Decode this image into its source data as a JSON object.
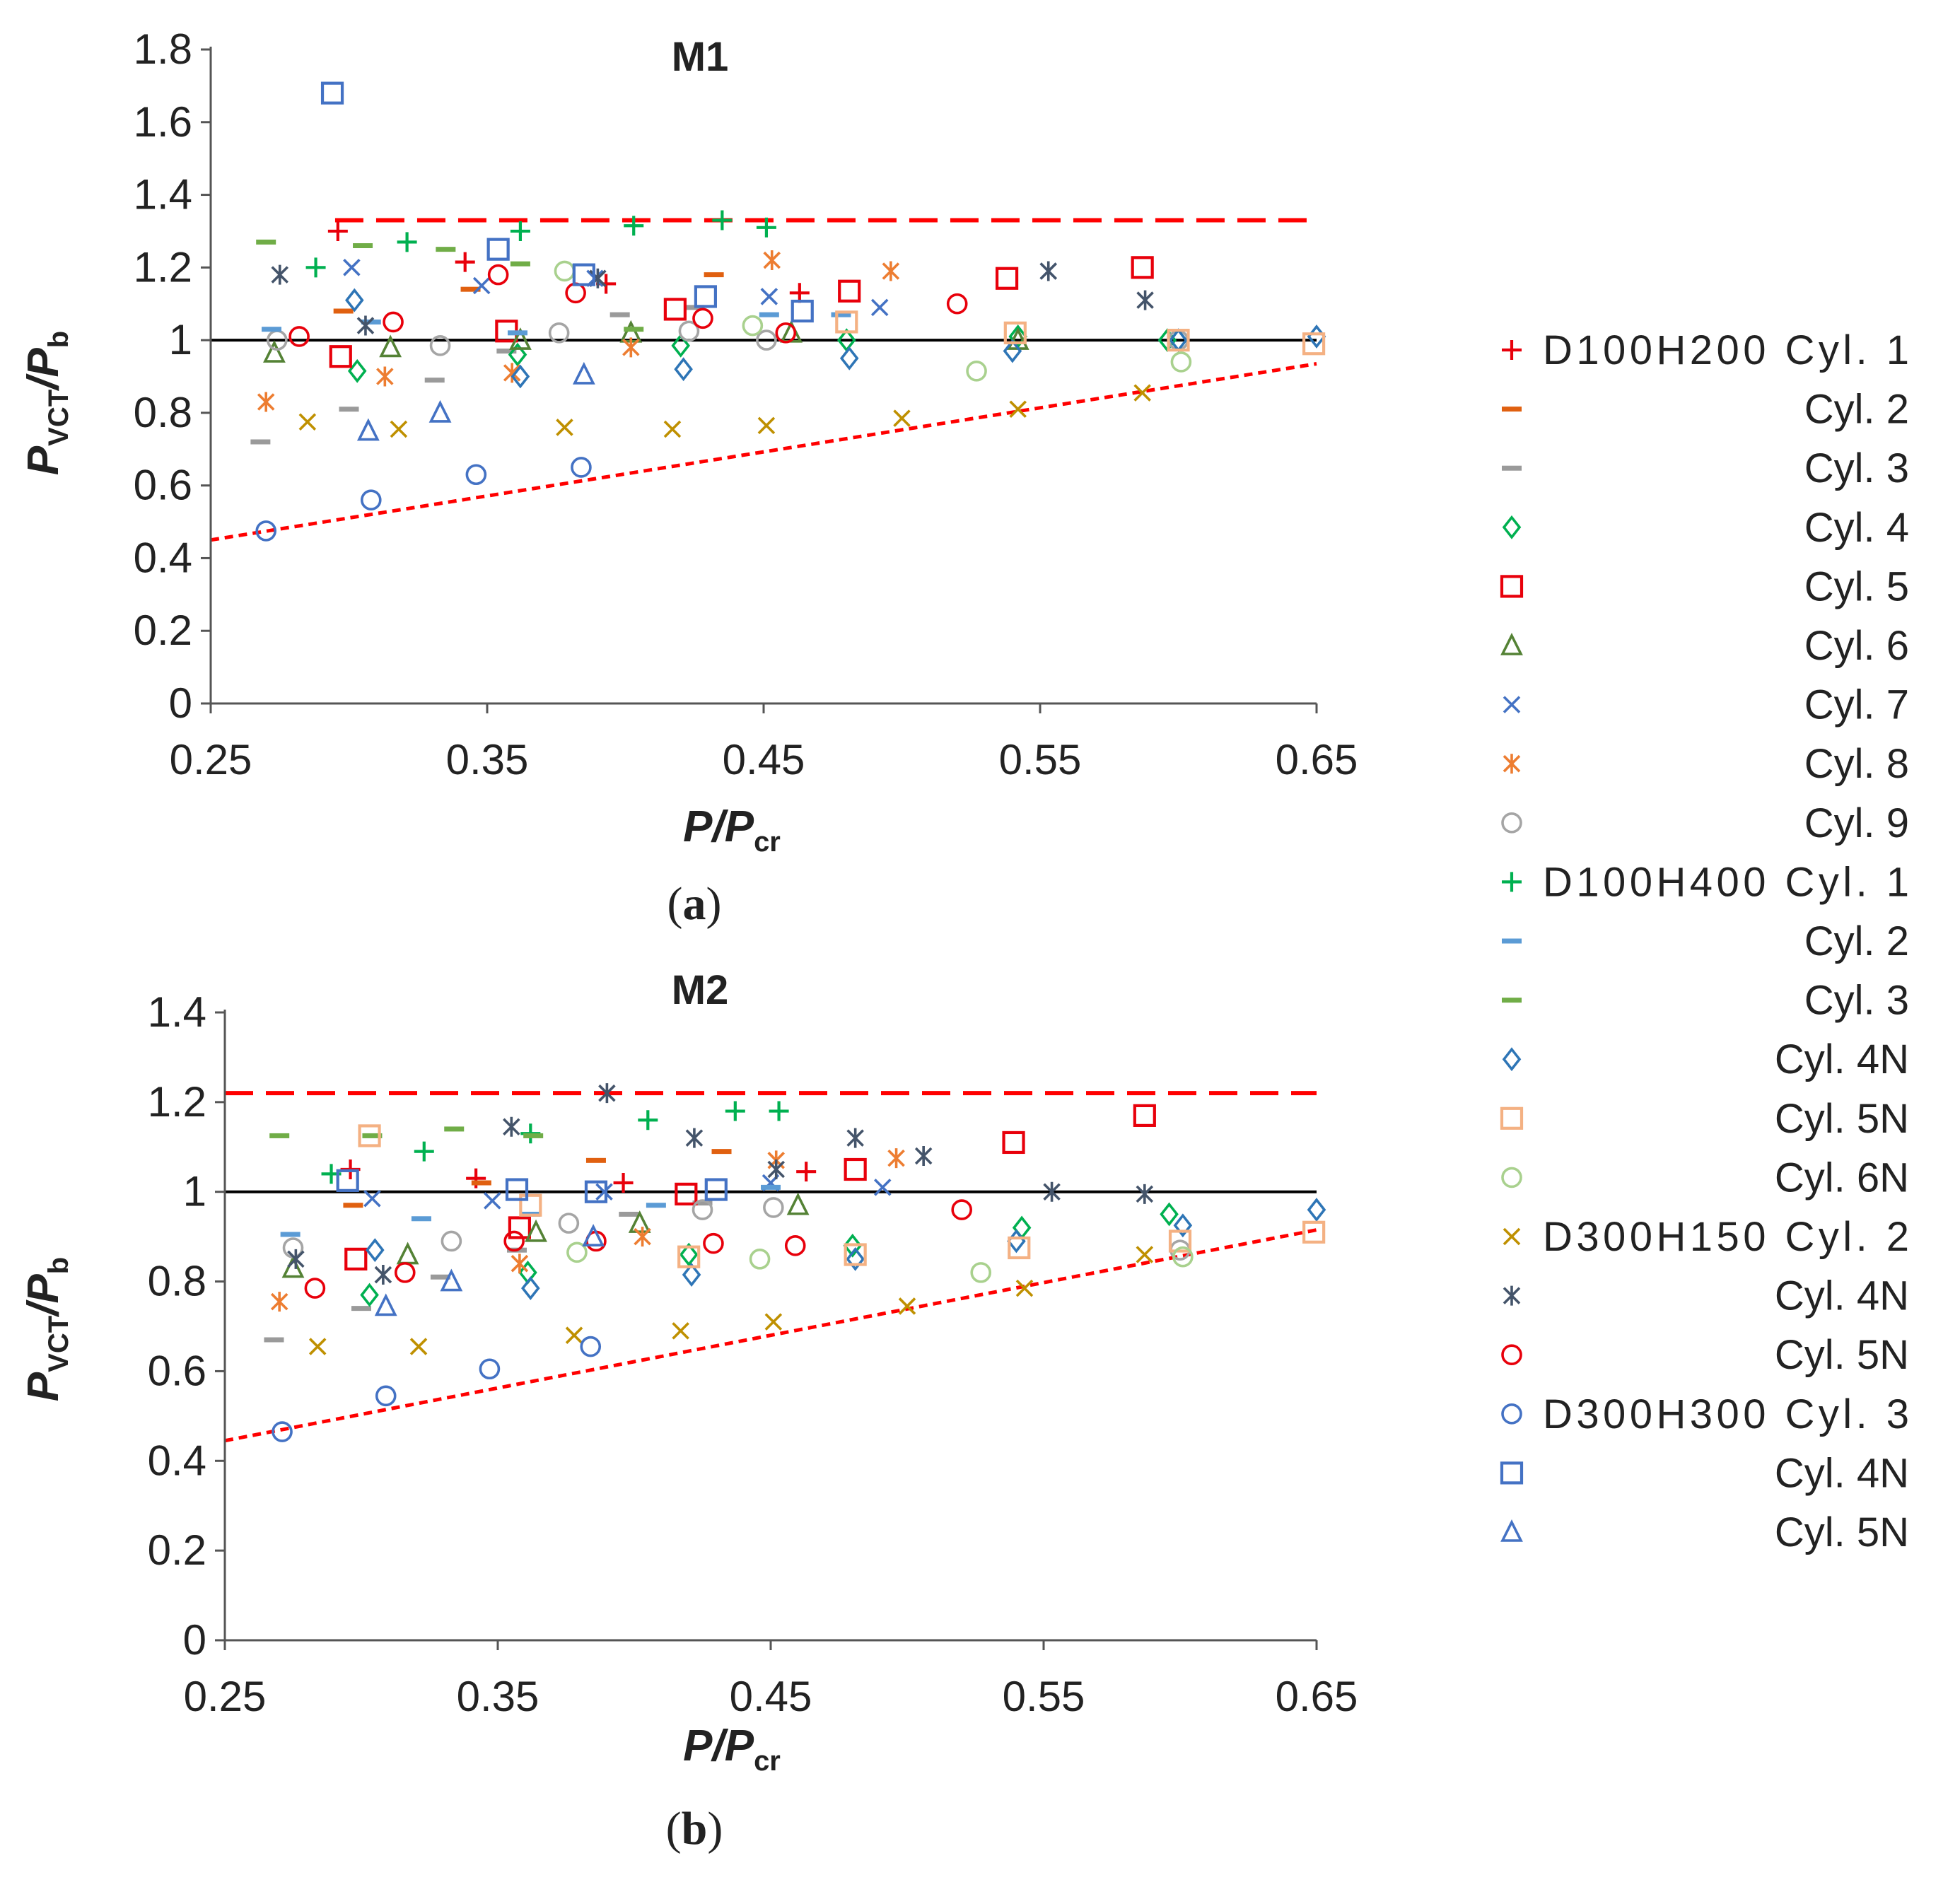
{
  "colors": {
    "D100H200_cyl1": "#e8000b",
    "D100H200_cyl2": "#e06010",
    "D100H200_cyl3": "#9a9a9a",
    "D100H200_cyl4": "#00b050",
    "D100H200_cyl5": "#e8000b",
    "D100H200_cyl6": "#548235",
    "D100H200_cyl7": "#4472c4",
    "D100H200_cyl8": "#ed7d31",
    "D100H200_cyl9": "#a5a5a5",
    "D100H400_cyl1": "#00b050",
    "D100H400_cyl2": "#5b9bd5",
    "D100H400_cyl3": "#70ad47",
    "D100H400_cyl4N": "#2e75b6",
    "D100H400_cyl5N": "#f4b183",
    "D100H400_cyl6N": "#a9d18e",
    "D300H150_cyl2": "#bf9000",
    "D300H150_cyl4N": "#44546a",
    "D300H150_cyl5N": "#e8000b",
    "D300H300_cyl3": "#4472c4",
    "D300H300_cyl4N": "#4472c4",
    "D300H300_cyl5N": "#4472c4",
    "upper_bound": "#ff0000",
    "lower_bound": "#ff0000",
    "reference": "#000000"
  },
  "panel_labels": {
    "a_open": "(",
    "a_letter": "a",
    "a_close": ")",
    "b_open": "(",
    "b_letter": "b",
    "b_close": ")"
  },
  "legend": [
    {
      "series": "D100H200_cyl1",
      "label": "D100H200 Cyl. 1",
      "marker": "plus"
    },
    {
      "series": "D100H200_cyl2",
      "label": "Cyl. 2",
      "marker": "dash"
    },
    {
      "series": "D100H200_cyl3",
      "label": "Cyl. 3",
      "marker": "dash"
    },
    {
      "series": "D100H200_cyl4",
      "label": "Cyl. 4",
      "marker": "diamond"
    },
    {
      "series": "D100H200_cyl5",
      "label": "Cyl. 5",
      "marker": "square"
    },
    {
      "series": "D100H200_cyl6",
      "label": "Cyl. 6",
      "marker": "triangle"
    },
    {
      "series": "D100H200_cyl7",
      "label": "Cyl. 7",
      "marker": "x"
    },
    {
      "series": "D100H200_cyl8",
      "label": "Cyl. 8",
      "marker": "asterisk"
    },
    {
      "series": "D100H200_cyl9",
      "label": "Cyl. 9",
      "marker": "circle"
    },
    {
      "series": "D100H400_cyl1",
      "label": "D100H400 Cyl. 1",
      "marker": "plus"
    },
    {
      "series": "D100H400_cyl2",
      "label": "Cyl. 2",
      "marker": "dash"
    },
    {
      "series": "D100H400_cyl3",
      "label": "Cyl. 3",
      "marker": "dash"
    },
    {
      "series": "D100H400_cyl4N",
      "label": "Cyl. 4N",
      "marker": "diamond"
    },
    {
      "series": "D100H400_cyl5N",
      "label": "Cyl. 5N",
      "marker": "square"
    },
    {
      "series": "D100H400_cyl6N",
      "label": "Cyl. 6N",
      "marker": "circle"
    },
    {
      "series": "D300H150_cyl2",
      "label": "D300H150 Cyl. 2",
      "marker": "x"
    },
    {
      "series": "D300H150_cyl4N",
      "label": "Cyl. 4N",
      "marker": "asterisk"
    },
    {
      "series": "D300H150_cyl5N",
      "label": "Cyl. 5N",
      "marker": "circle"
    },
    {
      "series": "D300H300_cyl3",
      "label": "D300H300 Cyl. 3",
      "marker": "circle"
    },
    {
      "series": "D300H300_cyl4N",
      "label": "Cyl. 4N",
      "marker": "square"
    },
    {
      "series": "D300H300_cyl5N",
      "label": "Cyl. 5N",
      "marker": "triangle"
    }
  ],
  "chart_data": [
    {
      "type": "scatter",
      "title": "M1",
      "xlabel": "P/P",
      "xlabel_sub": "cr",
      "ylabel": "P",
      "ylabel_sub1": "VCT",
      "ylabel_mid": "/P",
      "ylabel_sub2": "b",
      "xlim": [
        0.25,
        0.65
      ],
      "ylim": [
        0,
        1.8
      ],
      "xticks": [
        0.25,
        0.35,
        0.45,
        0.55,
        0.65
      ],
      "xtick_labels": [
        "0.25",
        "0.35",
        "0.45",
        "0.55",
        "0.65"
      ],
      "yticks": [
        0,
        0.2,
        0.4,
        0.6,
        0.8,
        1,
        1.2,
        1.4,
        1.6,
        1.8
      ],
      "ytick_labels": [
        "0",
        "0.2",
        "0.4",
        "0.6",
        "0.8",
        "1",
        "1.2",
        "1.4",
        "1.6",
        "1.8"
      ],
      "reference_line": {
        "y": 1,
        "x": [
          0.25,
          0.65
        ]
      },
      "upper_bound": {
        "x": [
          0.295,
          0.65
        ],
        "y": [
          1.33,
          1.33
        ]
      },
      "lower_bound": {
        "x": [
          0.25,
          0.65
        ],
        "y": [
          0.45,
          0.935
        ]
      },
      "series": [
        {
          "name": "D100H200_cyl1",
          "x": [
            0.296,
            0.342,
            0.393,
            0.463
          ],
          "y": [
            1.3,
            1.215,
            1.155,
            1.13
          ]
        },
        {
          "name": "D100H200_cyl2",
          "x": [
            0.298,
            0.344,
            0.432
          ],
          "y": [
            1.08,
            1.14,
            1.18
          ]
        },
        {
          "name": "D100H200_cyl3",
          "x": [
            0.268,
            0.3,
            0.331,
            0.357,
            0.398,
            0.425
          ],
          "y": [
            0.72,
            0.81,
            0.89,
            0.97,
            1.07,
            1.09
          ]
        },
        {
          "name": "D100H200_cyl4",
          "x": [
            0.303,
            0.361,
            0.42,
            0.48,
            0.542,
            0.596
          ],
          "y": [
            0.915,
            0.96,
            0.985,
            1.0,
            1.01,
            1.0
          ]
        },
        {
          "name": "D100H200_cyl5",
          "x": [
            0.297,
            0.357,
            0.418,
            0.481,
            0.538,
            0.587
          ],
          "y": [
            0.955,
            1.025,
            1.085,
            1.135,
            1.17,
            1.2
          ]
        },
        {
          "name": "D100H200_cyl6",
          "x": [
            0.273,
            0.315,
            0.362,
            0.402,
            0.46,
            0.542
          ],
          "y": [
            0.965,
            0.98,
            1.0,
            1.02,
            1.02,
            1.0
          ]
        },
        {
          "name": "D100H200_cyl7",
          "x": [
            0.301,
            0.348,
            0.389,
            0.452,
            0.492,
            0.553
          ],
          "y": [
            1.2,
            1.15,
            1.17,
            1.12,
            1.09,
            1.19
          ]
        },
        {
          "name": "D100H200_cyl8",
          "x": [
            0.27,
            0.313,
            0.359,
            0.402,
            0.453,
            0.496
          ],
          "y": [
            0.83,
            0.9,
            0.91,
            0.98,
            1.22,
            1.19
          ]
        },
        {
          "name": "D100H200_cyl9",
          "x": [
            0.274,
            0.333,
            0.376,
            0.423,
            0.451,
            0.6
          ],
          "y": [
            1.0,
            0.985,
            1.02,
            1.025,
            1.0,
            1.0
          ]
        },
        {
          "name": "D100H400_cyl1",
          "x": [
            0.288,
            0.321,
            0.362,
            0.403,
            0.435,
            0.451
          ],
          "y": [
            1.2,
            1.27,
            1.3,
            1.315,
            1.33,
            1.31
          ]
        },
        {
          "name": "D100H400_cyl2",
          "x": [
            0.272,
            0.308,
            0.361,
            0.452,
            0.478
          ],
          "y": [
            1.03,
            1.05,
            1.02,
            1.07,
            1.07
          ]
        },
        {
          "name": "D100H400_cyl3",
          "x": [
            0.27,
            0.305,
            0.335,
            0.362,
            0.403
          ],
          "y": [
            1.27,
            1.26,
            1.25,
            1.21,
            1.03
          ]
        },
        {
          "name": "D100H400_cyl4N",
          "x": [
            0.302,
            0.362,
            0.421,
            0.481,
            0.54,
            0.6,
            0.65
          ],
          "y": [
            1.11,
            0.9,
            0.92,
            0.95,
            0.97,
            1.0,
            1.01
          ]
        },
        {
          "name": "D100H400_cyl5N",
          "x": [
            0.48,
            0.541,
            0.6,
            0.649
          ],
          "y": [
            1.05,
            1.02,
            1.0,
            0.99
          ]
        },
        {
          "name": "D100H400_cyl6N",
          "x": [
            0.378,
            0.446,
            0.527,
            0.601
          ],
          "y": [
            1.19,
            1.04,
            0.915,
            0.94
          ]
        },
        {
          "name": "D300H150_cyl2",
          "x": [
            0.285,
            0.318,
            0.378,
            0.417,
            0.451,
            0.5,
            0.542,
            0.587
          ],
          "y": [
            0.775,
            0.755,
            0.76,
            0.755,
            0.765,
            0.785,
            0.81,
            0.855
          ]
        },
        {
          "name": "D300H150_cyl4N",
          "x": [
            0.275,
            0.306,
            0.39,
            0.553,
            0.588
          ],
          "y": [
            1.18,
            1.04,
            1.17,
            1.19,
            1.11
          ]
        },
        {
          "name": "D300H150_cyl5N",
          "x": [
            0.282,
            0.316,
            0.354,
            0.382,
            0.428,
            0.458,
            0.52
          ],
          "y": [
            1.01,
            1.05,
            1.18,
            1.13,
            1.06,
            1.02,
            1.1
          ]
        },
        {
          "name": "D300H300_cyl3",
          "x": [
            0.27,
            0.308,
            0.346,
            0.384
          ],
          "y": [
            0.475,
            0.56,
            0.63,
            0.65
          ]
        },
        {
          "name": "D300H300_cyl4N",
          "x": [
            0.294,
            0.354,
            0.385,
            0.429,
            0.464
          ],
          "y": [
            1.68,
            1.25,
            1.18,
            1.12,
            1.08
          ]
        },
        {
          "name": "D300H300_cyl5N",
          "x": [
            0.307,
            0.333,
            0.385
          ],
          "y": [
            0.75,
            0.8,
            0.905
          ]
        }
      ]
    },
    {
      "type": "scatter",
      "title": "M2",
      "xlabel": "P/P",
      "xlabel_sub": "cr",
      "ylabel": "P",
      "ylabel_sub1": "VCT",
      "ylabel_mid": "/P",
      "ylabel_sub2": "b",
      "xlim": [
        0.25,
        0.65
      ],
      "ylim": [
        0,
        1.4
      ],
      "xticks": [
        0.25,
        0.35,
        0.45,
        0.55,
        0.65
      ],
      "xtick_labels": [
        "0.25",
        "0.35",
        "0.45",
        "0.55",
        "0.65"
      ],
      "yticks": [
        0,
        0.2,
        0.4,
        0.6,
        0.8,
        1,
        1.2,
        1.4
      ],
      "ytick_labels": [
        "0",
        "0.2",
        "0.4",
        "0.6",
        "0.8",
        "1",
        "1.2",
        "1.4"
      ],
      "reference_line": {
        "y": 1,
        "x": [
          0.25,
          0.65
        ]
      },
      "upper_bound": {
        "x": [
          0.25,
          0.65
        ],
        "y": [
          1.22,
          1.22
        ]
      },
      "lower_bound": {
        "x": [
          0.25,
          0.65
        ],
        "y": [
          0.445,
          0.915
        ]
      },
      "series": [
        {
          "name": "D100H200_cyl1",
          "x": [
            0.296,
            0.342,
            0.396,
            0.463
          ],
          "y": [
            1.05,
            1.03,
            1.02,
            1.045
          ]
        },
        {
          "name": "D100H200_cyl2",
          "x": [
            0.297,
            0.344,
            0.386,
            0.432
          ],
          "y": [
            0.97,
            1.02,
            1.07,
            1.09
          ]
        },
        {
          "name": "D100H200_cyl3",
          "x": [
            0.268,
            0.3,
            0.329,
            0.357,
            0.398,
            0.425
          ],
          "y": [
            0.67,
            0.74,
            0.81,
            0.87,
            0.95,
            0.975
          ]
        },
        {
          "name": "D100H200_cyl4",
          "x": [
            0.303,
            0.361,
            0.42,
            0.48,
            0.542,
            0.596
          ],
          "y": [
            0.77,
            0.82,
            0.86,
            0.88,
            0.92,
            0.95
          ]
        },
        {
          "name": "D100H200_cyl5",
          "x": [
            0.298,
            0.358,
            0.419,
            0.481,
            0.539,
            0.587
          ],
          "y": [
            0.85,
            0.92,
            0.995,
            1.05,
            1.11,
            1.17
          ]
        },
        {
          "name": "D100H200_cyl6",
          "x": [
            0.275,
            0.317,
            0.364,
            0.402,
            0.46
          ],
          "y": [
            0.83,
            0.86,
            0.91,
            0.93,
            0.97
          ]
        },
        {
          "name": "D100H200_cyl7",
          "x": [
            0.304,
            0.348,
            0.389,
            0.45,
            0.491
          ],
          "y": [
            0.985,
            0.98,
            1.0,
            1.02,
            1.01
          ]
        },
        {
          "name": "D100H200_cyl8",
          "x": [
            0.27,
            0.358,
            0.403,
            0.452,
            0.496
          ],
          "y": [
            0.755,
            0.84,
            0.9,
            1.07,
            1.075
          ]
        },
        {
          "name": "D100H200_cyl9",
          "x": [
            0.275,
            0.333,
            0.376,
            0.425,
            0.451,
            0.6
          ],
          "y": [
            0.875,
            0.89,
            0.93,
            0.96,
            0.965,
            0.87
          ]
        },
        {
          "name": "D100H400_cyl1",
          "x": [
            0.289,
            0.323,
            0.362,
            0.405,
            0.437,
            0.453
          ],
          "y": [
            1.04,
            1.09,
            1.13,
            1.16,
            1.18,
            1.18
          ]
        },
        {
          "name": "D100H400_cyl2",
          "x": [
            0.274,
            0.322,
            0.362,
            0.408,
            0.45
          ],
          "y": [
            0.905,
            0.94,
            0.95,
            0.97,
            1.01
          ]
        },
        {
          "name": "D100H400_cyl3",
          "x": [
            0.27,
            0.304,
            0.334,
            0.363
          ],
          "y": [
            1.125,
            1.125,
            1.14,
            1.125
          ]
        },
        {
          "name": "D100H400_cyl4N",
          "x": [
            0.305,
            0.362,
            0.421,
            0.481,
            0.54,
            0.601,
            0.65
          ],
          "y": [
            0.87,
            0.785,
            0.815,
            0.85,
            0.89,
            0.925,
            0.96
          ]
        },
        {
          "name": "D100H400_cyl5N",
          "x": [
            0.303,
            0.362,
            0.42,
            0.481,
            0.541,
            0.6,
            0.649
          ],
          "y": [
            1.125,
            0.97,
            0.855,
            0.86,
            0.875,
            0.89,
            0.91
          ]
        },
        {
          "name": "D100H400_cyl6N",
          "x": [
            0.379,
            0.446,
            0.527,
            0.601
          ],
          "y": [
            0.865,
            0.85,
            0.82,
            0.855
          ]
        },
        {
          "name": "D300H150_cyl2",
          "x": [
            0.284,
            0.321,
            0.378,
            0.417,
            0.451,
            0.5,
            0.543,
            0.587
          ],
          "y": [
            0.655,
            0.655,
            0.68,
            0.69,
            0.71,
            0.745,
            0.785,
            0.86
          ]
        },
        {
          "name": "D300H150_cyl4N",
          "x": [
            0.276,
            0.308,
            0.355,
            0.39,
            0.422,
            0.452,
            0.481,
            0.506,
            0.553,
            0.587
          ],
          "y": [
            0.85,
            0.815,
            1.145,
            1.22,
            1.12,
            1.05,
            1.12,
            1.08,
            1.0,
            0.995
          ]
        },
        {
          "name": "D300H150_cyl5N",
          "x": [
            0.283,
            0.316,
            0.356,
            0.386,
            0.429,
            0.459,
            0.52
          ],
          "y": [
            0.785,
            0.82,
            0.89,
            0.89,
            0.885,
            0.88,
            0.96
          ]
        },
        {
          "name": "D300H300_cyl3",
          "x": [
            0.271,
            0.309,
            0.347,
            0.384
          ],
          "y": [
            0.465,
            0.545,
            0.605,
            0.655
          ]
        },
        {
          "name": "D300H300_cyl4N",
          "x": [
            0.295,
            0.357,
            0.386,
            0.43
          ],
          "y": [
            1.025,
            1.005,
            1.0,
            1.005
          ]
        },
        {
          "name": "D300H300_cyl5N",
          "x": [
            0.309,
            0.333,
            0.385
          ],
          "y": [
            0.745,
            0.8,
            0.9
          ]
        }
      ]
    }
  ]
}
